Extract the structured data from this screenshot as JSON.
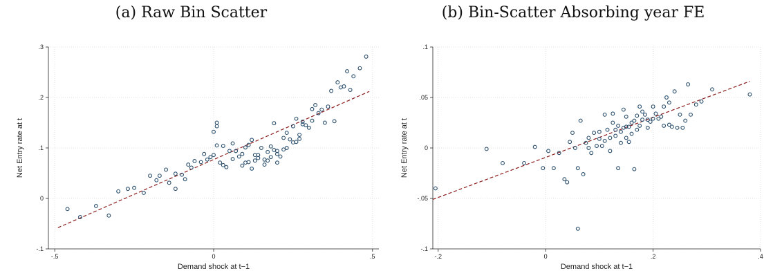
{
  "chart_data": [
    {
      "type": "scatter",
      "title": "(a) Raw Bin Scatter",
      "xlabel": "Demand shock at t−1",
      "ylabel": "Net Entry rate at t",
      "xlim": [
        -0.52,
        0.52
      ],
      "ylim": [
        -0.1,
        0.3
      ],
      "xticks": [
        -0.5,
        0,
        0.5
      ],
      "xtick_labels": [
        "-.5",
        "0",
        ".5"
      ],
      "yticks": [
        -0.1,
        0,
        0.1,
        0.2,
        0.3
      ],
      "ytick_labels": [
        "-.1",
        "0",
        ".1",
        ".2",
        ".3"
      ],
      "grid": true,
      "fit_line": {
        "x": [
          -0.49,
          0.49
        ],
        "y": [
          -0.058,
          0.212
        ],
        "style": "dashed",
        "color": "#8b1a1a"
      },
      "marker_color": "#2a4e6c",
      "points": [
        [
          -0.46,
          -0.021
        ],
        [
          -0.42,
          -0.037
        ],
        [
          -0.37,
          -0.015
        ],
        [
          -0.33,
          -0.034
        ],
        [
          -0.3,
          0.014
        ],
        [
          -0.27,
          0.019
        ],
        [
          -0.25,
          0.021
        ],
        [
          -0.22,
          0.011
        ],
        [
          -0.2,
          0.045
        ],
        [
          -0.18,
          0.036
        ],
        [
          -0.17,
          0.045
        ],
        [
          -0.15,
          0.057
        ],
        [
          -0.14,
          0.031
        ],
        [
          -0.12,
          0.019
        ],
        [
          -0.12,
          0.049
        ],
        [
          -0.1,
          0.047
        ],
        [
          -0.09,
          0.038
        ],
        [
          -0.08,
          0.067
        ],
        [
          -0.07,
          0.061
        ],
        [
          -0.06,
          0.074
        ],
        [
          -0.04,
          0.072
        ],
        [
          -0.03,
          0.088
        ],
        [
          -0.02,
          0.077
        ],
        [
          -0.01,
          0.082
        ],
        [
          0.0,
          0.086
        ],
        [
          0.0,
          0.132
        ],
        [
          0.01,
          0.143
        ],
        [
          0.01,
          0.15
        ],
        [
          0.01,
          0.105
        ],
        [
          0.02,
          0.071
        ],
        [
          0.03,
          0.104
        ],
        [
          0.03,
          0.066
        ],
        [
          0.04,
          0.062
        ],
        [
          0.05,
          0.094
        ],
        [
          0.06,
          0.078
        ],
        [
          0.06,
          0.109
        ],
        [
          0.07,
          0.094
        ],
        [
          0.08,
          0.083
        ],
        [
          0.09,
          0.065
        ],
        [
          0.09,
          0.088
        ],
        [
          0.1,
          0.101
        ],
        [
          0.1,
          0.071
        ],
        [
          0.11,
          0.106
        ],
        [
          0.11,
          0.072
        ],
        [
          0.12,
          0.116
        ],
        [
          0.12,
          0.059
        ],
        [
          0.13,
          0.086
        ],
        [
          0.13,
          0.075
        ],
        [
          0.14,
          0.08
        ],
        [
          0.14,
          0.086
        ],
        [
          0.15,
          0.1
        ],
        [
          0.16,
          0.077
        ],
        [
          0.16,
          0.067
        ],
        [
          0.17,
          0.075
        ],
        [
          0.17,
          0.092
        ],
        [
          0.18,
          0.082
        ],
        [
          0.18,
          0.103
        ],
        [
          0.19,
          0.149
        ],
        [
          0.19,
          0.096
        ],
        [
          0.2,
          0.088
        ],
        [
          0.2,
          0.094
        ],
        [
          0.2,
          0.071
        ],
        [
          0.21,
          0.083
        ],
        [
          0.22,
          0.097
        ],
        [
          0.22,
          0.12
        ],
        [
          0.23,
          0.1
        ],
        [
          0.23,
          0.13
        ],
        [
          0.24,
          0.117
        ],
        [
          0.25,
          0.111
        ],
        [
          0.25,
          0.143
        ],
        [
          0.26,
          0.158
        ],
        [
          0.26,
          0.112
        ],
        [
          0.27,
          0.118
        ],
        [
          0.27,
          0.126
        ],
        [
          0.28,
          0.147
        ],
        [
          0.28,
          0.152
        ],
        [
          0.29,
          0.145
        ],
        [
          0.3,
          0.14
        ],
        [
          0.31,
          0.154
        ],
        [
          0.31,
          0.177
        ],
        [
          0.32,
          0.185
        ],
        [
          0.33,
          0.169
        ],
        [
          0.34,
          0.176
        ],
        [
          0.35,
          0.15
        ],
        [
          0.36,
          0.182
        ],
        [
          0.37,
          0.213
        ],
        [
          0.38,
          0.153
        ],
        [
          0.39,
          0.23
        ],
        [
          0.4,
          0.22
        ],
        [
          0.41,
          0.222
        ],
        [
          0.42,
          0.252
        ],
        [
          0.43,
          0.215
        ],
        [
          0.44,
          0.242
        ],
        [
          0.46,
          0.258
        ],
        [
          0.48,
          0.281
        ]
      ]
    },
    {
      "type": "scatter",
      "title": "(b) Bin-Scatter Absorbing year FE",
      "xlabel": "Demand shock at t−1",
      "ylabel": "Net Entry rate at t",
      "xlim": [
        -0.21,
        0.4
      ],
      "ylim": [
        -0.1,
        0.1
      ],
      "xticks": [
        -0.2,
        0,
        0.2,
        0.4
      ],
      "xtick_labels": [
        "-.2",
        "0",
        ".2",
        ".4"
      ],
      "yticks": [
        -0.1,
        -0.05,
        0,
        0.05,
        0.1
      ],
      "ytick_labels": [
        "-.1",
        "-.05",
        "0",
        ".05",
        ".1"
      ],
      "grid": true,
      "fit_line": {
        "x": [
          -0.21,
          0.38
        ],
        "y": [
          -0.051,
          0.066
        ],
        "style": "dashed",
        "color": "#8b1a1a"
      },
      "marker_color": "#2a4e6c",
      "points": [
        [
          -0.205,
          -0.04
        ],
        [
          -0.11,
          -0.001
        ],
        [
          -0.08,
          -0.015
        ],
        [
          -0.04,
          -0.015
        ],
        [
          -0.02,
          0.001
        ],
        [
          -0.005,
          -0.02
        ],
        [
          0.005,
          -0.003
        ],
        [
          0.015,
          -0.02
        ],
        [
          0.025,
          -0.005
        ],
        [
          0.035,
          -0.031
        ],
        [
          0.04,
          -0.034
        ],
        [
          0.045,
          0.006
        ],
        [
          0.05,
          0.015
        ],
        [
          0.055,
          0.0
        ],
        [
          0.06,
          -0.02
        ],
        [
          0.06,
          -0.08
        ],
        [
          0.065,
          0.027
        ],
        [
          0.07,
          -0.026
        ],
        [
          0.075,
          0.005
        ],
        [
          0.08,
          0.01
        ],
        [
          0.08,
          0.0
        ],
        [
          0.085,
          -0.005
        ],
        [
          0.09,
          0.015
        ],
        [
          0.095,
          0.002
        ],
        [
          0.1,
          0.016
        ],
        [
          0.1,
          0.009
        ],
        [
          0.105,
          0.002
        ],
        [
          0.11,
          0.033
        ],
        [
          0.11,
          0.007
        ],
        [
          0.115,
          0.018
        ],
        [
          0.12,
          0.01
        ],
        [
          0.12,
          -0.003
        ],
        [
          0.125,
          0.034
        ],
        [
          0.125,
          0.025
        ],
        [
          0.13,
          0.012
        ],
        [
          0.13,
          0.018
        ],
        [
          0.135,
          -0.02
        ],
        [
          0.135,
          0.022
        ],
        [
          0.14,
          0.016
        ],
        [
          0.14,
          0.005
        ],
        [
          0.145,
          0.038
        ],
        [
          0.145,
          0.02
        ],
        [
          0.15,
          0.021
        ],
        [
          0.15,
          0.01
        ],
        [
          0.15,
          0.031
        ],
        [
          0.155,
          0.006
        ],
        [
          0.155,
          0.021
        ],
        [
          0.16,
          0.014
        ],
        [
          0.16,
          0.025
        ],
        [
          0.165,
          0.027
        ],
        [
          0.165,
          -0.021
        ],
        [
          0.17,
          0.032
        ],
        [
          0.17,
          0.018
        ],
        [
          0.175,
          0.041
        ],
        [
          0.175,
          0.022
        ],
        [
          0.18,
          0.036
        ],
        [
          0.18,
          0.028
        ],
        [
          0.185,
          0.033
        ],
        [
          0.19,
          0.02
        ],
        [
          0.19,
          0.028
        ],
        [
          0.195,
          0.026
        ],
        [
          0.2,
          0.029
        ],
        [
          0.2,
          0.041
        ],
        [
          0.205,
          0.034
        ],
        [
          0.21,
          0.029
        ],
        [
          0.215,
          0.031
        ],
        [
          0.22,
          0.022
        ],
        [
          0.22,
          0.041
        ],
        [
          0.225,
          0.05
        ],
        [
          0.23,
          0.045
        ],
        [
          0.23,
          0.023
        ],
        [
          0.235,
          0.021
        ],
        [
          0.24,
          0.056
        ],
        [
          0.245,
          0.02
        ],
        [
          0.25,
          0.033
        ],
        [
          0.255,
          0.02
        ],
        [
          0.26,
          0.027
        ],
        [
          0.265,
          0.063
        ],
        [
          0.27,
          0.033
        ],
        [
          0.28,
          0.043
        ],
        [
          0.29,
          0.046
        ],
        [
          0.31,
          0.058
        ],
        [
          0.38,
          0.053
        ]
      ]
    }
  ]
}
